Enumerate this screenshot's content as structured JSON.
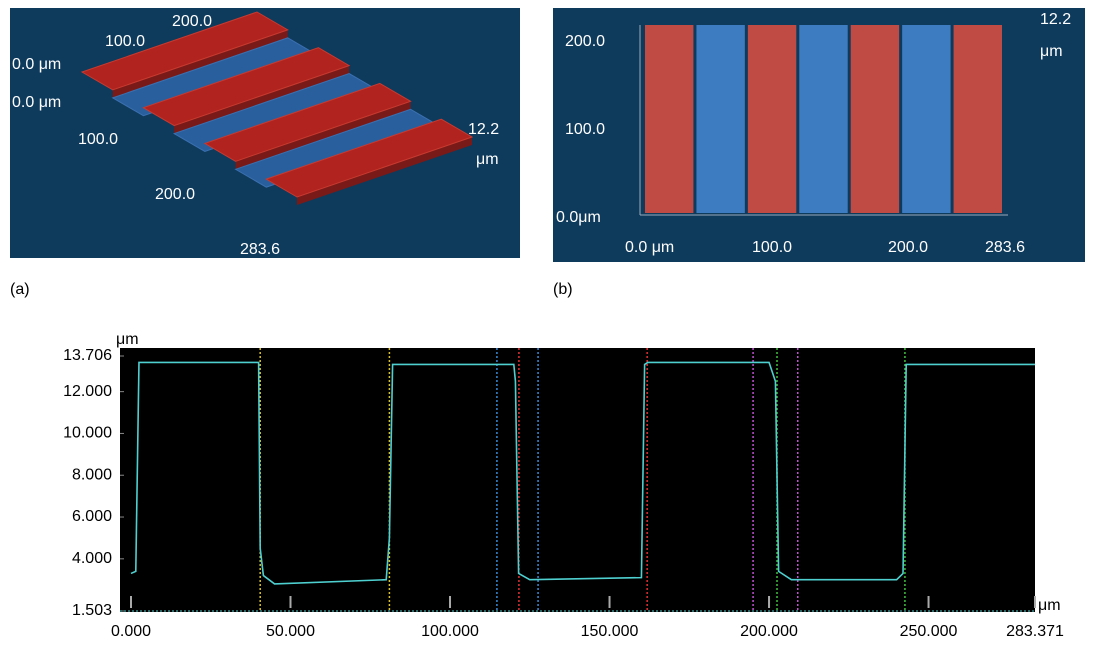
{
  "panel_a": {
    "label": "(a)",
    "axis_texts": [
      "200.0",
      "100.0",
      "0.0 μm",
      "0.0 μm",
      "100.0",
      "200.0",
      "283.6",
      "12.2",
      "μm"
    ]
  },
  "panel_b": {
    "label": "(b)",
    "axis_texts": [
      "200.0",
      "100.0",
      "0.0μm",
      "0.0 μm",
      "100.0",
      "200.0",
      "283.6",
      "12.2",
      "μm"
    ]
  },
  "chart_data": {
    "type": "line",
    "y_unit": "μm",
    "x_unit": "μm",
    "x": [
      0,
      1.5,
      2.5,
      40,
      40.5,
      41.5,
      45,
      80,
      81,
      82,
      120,
      120.5,
      121.5,
      125,
      160,
      161,
      162,
      200,
      202,
      203,
      207,
      240,
      242,
      243,
      283.371
    ],
    "series": [
      {
        "color": "#4fd0d0",
        "values": [
          3.3,
          3.4,
          13.4,
          13.4,
          4.5,
          3.2,
          2.8,
          3.0,
          5.0,
          13.3,
          13.3,
          12.5,
          3.3,
          3.0,
          3.1,
          13.3,
          13.4,
          13.4,
          12.5,
          3.4,
          3.0,
          3.0,
          3.3,
          13.3,
          13.3
        ]
      }
    ],
    "xlim": [
      0,
      283.371
    ],
    "ylim": [
      1.503,
      13.706
    ],
    "xticks": [
      {
        "value": 0,
        "label": "0.000"
      },
      {
        "value": 50,
        "label": "50.000"
      },
      {
        "value": 100,
        "label": "100.000"
      },
      {
        "value": 150,
        "label": "150.000"
      },
      {
        "value": 200,
        "label": "200.000"
      },
      {
        "value": 250,
        "label": "250.000"
      },
      283.371
    ],
    "yticks": [
      1.503,
      {
        "value": 4,
        "label": "4.000"
      },
      {
        "value": 6,
        "label": "6.000"
      },
      {
        "value": 8,
        "label": "8.000"
      },
      {
        "value": 10,
        "label": "10.000"
      },
      {
        "value": 12,
        "label": "12.000"
      },
      13.706
    ],
    "cursors": [
      {
        "x": 40.5,
        "color": "#d8c020"
      },
      {
        "x": 81,
        "color": "#d8c020"
      },
      {
        "x": 114.7,
        "color": "#3a8ad8"
      },
      {
        "x": 127.6,
        "color": "#3a8ad8"
      },
      {
        "x": 121.6,
        "color": "#e03030"
      },
      {
        "x": 161.8,
        "color": "#e03030"
      },
      {
        "x": 195,
        "color": "#c050d0"
      },
      {
        "x": 209,
        "color": "#c050d0"
      },
      {
        "x": 202.5,
        "color": "#40c040"
      },
      {
        "x": 242.6,
        "color": "#40c040"
      }
    ]
  }
}
